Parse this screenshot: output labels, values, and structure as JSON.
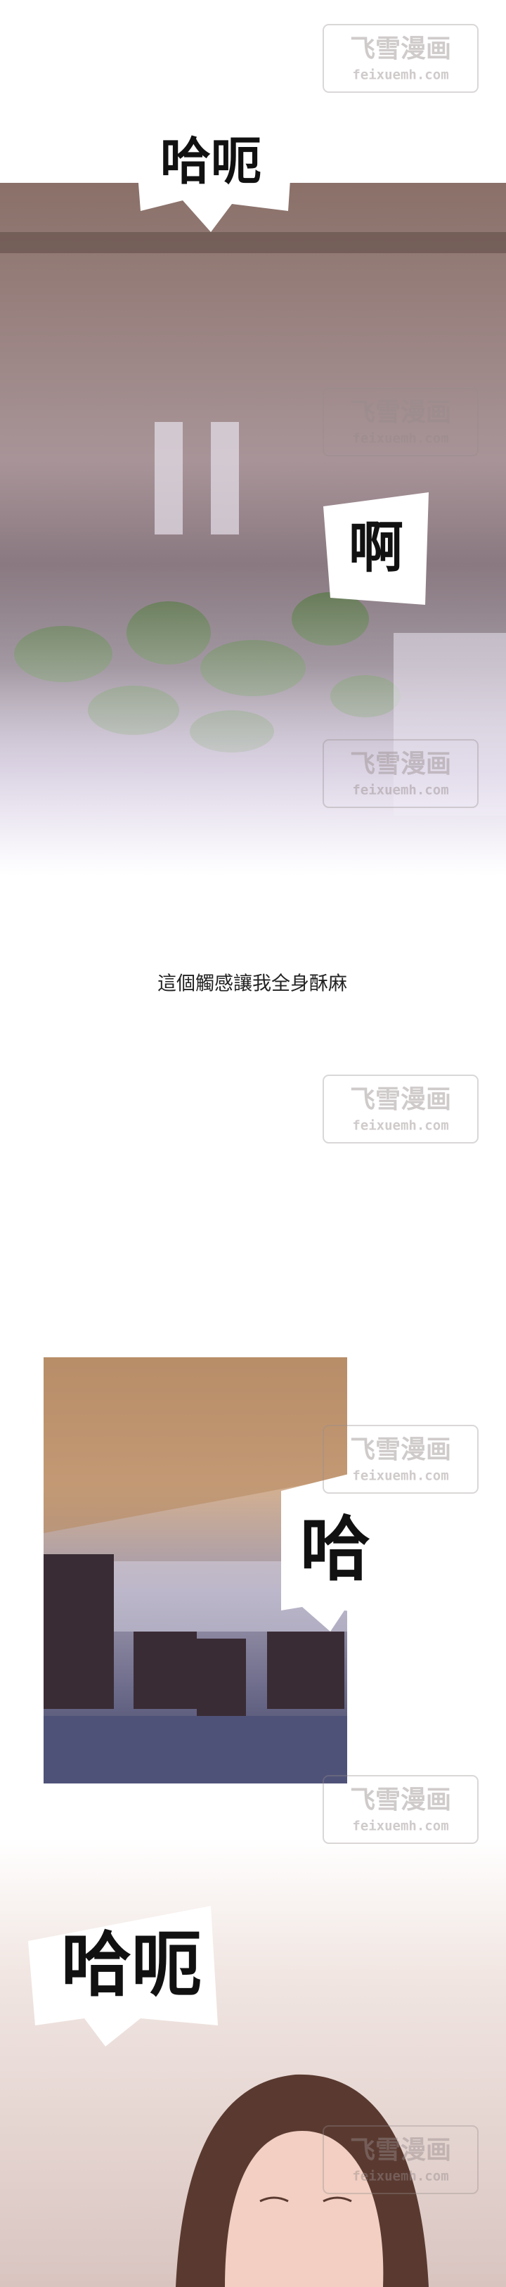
{
  "panels": [
    {
      "sound_effects": [
        "哈呃",
        "啊"
      ],
      "caption": "這個觸感讓我全身酥麻"
    },
    {
      "sound_effects": [
        "哈"
      ]
    },
    {
      "sound_effects": [
        "哈呃"
      ]
    }
  ],
  "watermark": {
    "title": "飞雪漫画",
    "url": "feixuemh.com"
  }
}
